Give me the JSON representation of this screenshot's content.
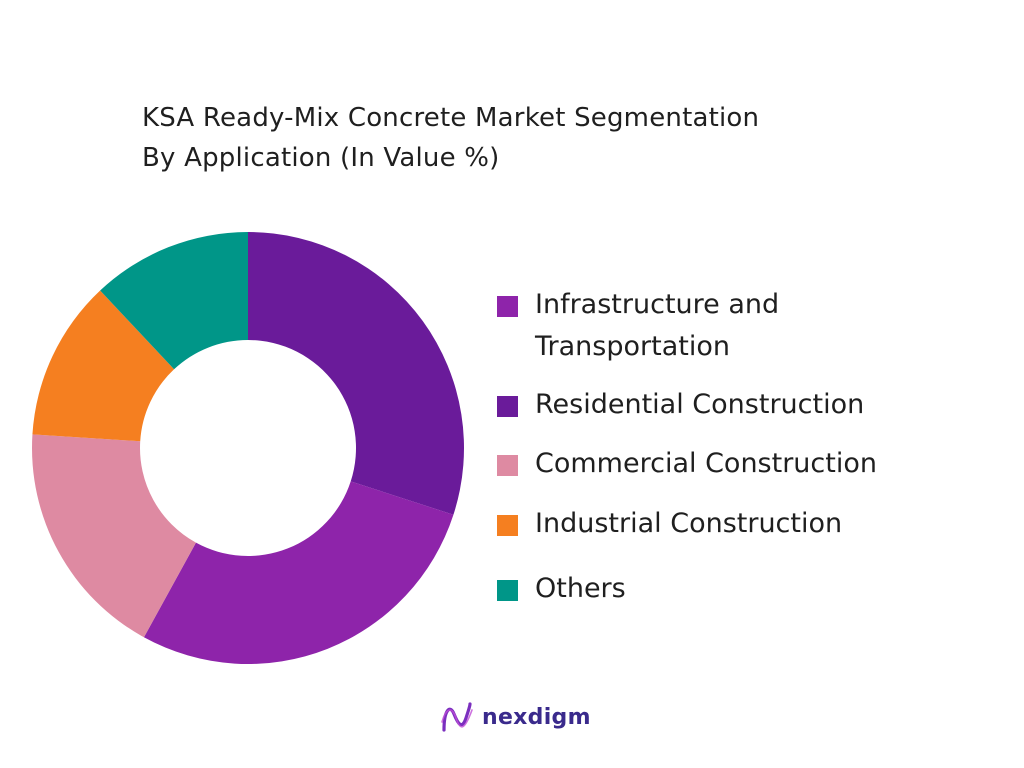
{
  "chart_data": {
    "type": "pie",
    "title_line1": "KSA Ready-Mix Concrete Market  Segmentation",
    "title_line2": "By Application (In Value %)",
    "donut": true,
    "legend_position": "right",
    "series": [
      {
        "name": "Residential Construction",
        "value": 30,
        "color": "#6a1b9a"
      },
      {
        "name": "Infrastructure and Transportation",
        "value": 28,
        "color": "#8e24aa"
      },
      {
        "name": "Commercial Construction",
        "value": 18,
        "color": "#de8aa2"
      },
      {
        "name": "Industrial Construction",
        "value": 12,
        "color": "#f57f20"
      },
      {
        "name": "Others",
        "value": 12,
        "color": "#009688"
      }
    ]
  },
  "legend": [
    {
      "line1": "Infrastructure and",
      "line2": "Transportation",
      "color": "#8e24aa"
    },
    {
      "line1": "Residential Construction",
      "line2": "",
      "color": "#6a1b9a"
    },
    {
      "line1": "Commercial Construction",
      "line2": "",
      "color": "#de8aa2"
    },
    {
      "line1": "Industrial Construction",
      "line2": "",
      "color": "#f57f20"
    },
    {
      "line1": "Others",
      "line2": "",
      "color": "#009688"
    }
  ],
  "brand": {
    "name": "nexdigm",
    "icon": "nexdigm-logo-icon"
  }
}
